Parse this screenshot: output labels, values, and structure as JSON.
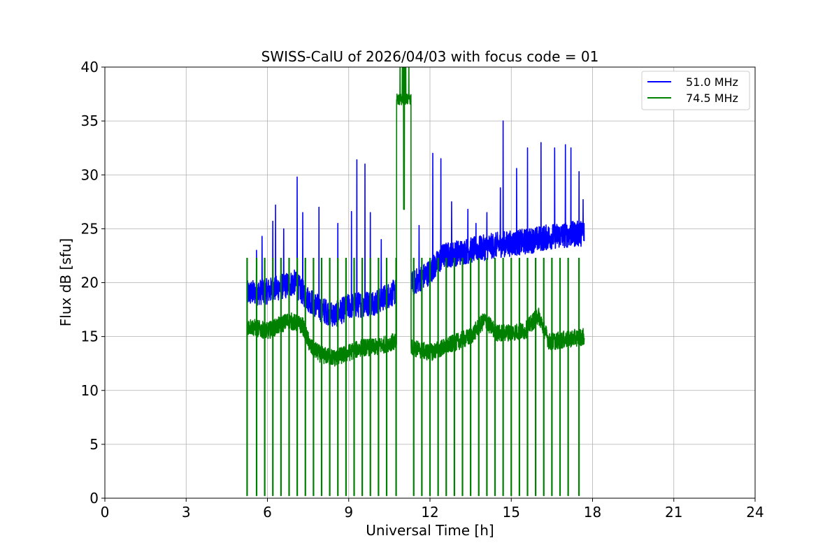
{
  "chart_data": {
    "type": "line",
    "title": "SWISS-CalU of 2026/04/03 with focus code = 01",
    "xlabel": "Universal Time [h]",
    "ylabel": "Flux dB [sfu]",
    "xlim": [
      0,
      24
    ],
    "ylim": [
      0,
      40
    ],
    "x_ticks": [
      "0",
      "3",
      "6",
      "9",
      "12",
      "15",
      "18",
      "21",
      "24"
    ],
    "y_ticks": [
      "0",
      "5",
      "10",
      "15",
      "20",
      "25",
      "30",
      "35",
      "40"
    ],
    "grid": true,
    "legend_position": "top-right",
    "series": [
      {
        "name": "51.0 MHz",
        "color": "#0000ff",
        "x_range": [
          5.25,
          17.7
        ],
        "baseline_points": [
          [
            5.25,
            19.0
          ],
          [
            6.0,
            19.2
          ],
          [
            7.0,
            20.0
          ],
          [
            7.5,
            18.5
          ],
          [
            8.0,
            17.5
          ],
          [
            8.5,
            17.0
          ],
          [
            9.0,
            17.8
          ],
          [
            9.5,
            18.0
          ],
          [
            10.0,
            18.2
          ],
          [
            10.6,
            19.0
          ],
          [
            11.3,
            19.8
          ],
          [
            12.0,
            21.0
          ],
          [
            12.5,
            22.5
          ],
          [
            13.5,
            23.0
          ],
          [
            14.5,
            23.5
          ],
          [
            15.5,
            23.8
          ],
          [
            16.5,
            24.3
          ],
          [
            17.7,
            24.6
          ]
        ],
        "noise_amplitude": 1.2,
        "spikes": [
          [
            5.6,
            23.0
          ],
          [
            5.8,
            24.3
          ],
          [
            6.2,
            25.7
          ],
          [
            6.3,
            27.2
          ],
          [
            6.6,
            25.0
          ],
          [
            7.1,
            29.8
          ],
          [
            7.3,
            26.5
          ],
          [
            7.9,
            27.0
          ],
          [
            8.6,
            25.5
          ],
          [
            9.1,
            26.6
          ],
          [
            9.3,
            31.4
          ],
          [
            9.6,
            31.0
          ],
          [
            9.8,
            26.5
          ],
          [
            10.2,
            24.0
          ],
          [
            11.6,
            25.3
          ],
          [
            12.1,
            32.0
          ],
          [
            12.4,
            31.5
          ],
          [
            12.8,
            27.5
          ],
          [
            13.4,
            26.8
          ],
          [
            13.7,
            25.5
          ],
          [
            14.1,
            26.5
          ],
          [
            14.6,
            28.8
          ],
          [
            14.7,
            35.0
          ],
          [
            15.2,
            30.6
          ],
          [
            15.6,
            32.5
          ],
          [
            16.1,
            33.0
          ],
          [
            16.6,
            32.5
          ],
          [
            17.0,
            32.8
          ],
          [
            17.2,
            32.5
          ],
          [
            17.5,
            30.3
          ],
          [
            17.65,
            27.7
          ]
        ]
      },
      {
        "name": "74.5 MHz",
        "color": "#008000",
        "x_range": [
          5.25,
          17.7
        ],
        "baseline_points": [
          [
            5.25,
            16.0
          ],
          [
            6.0,
            15.5
          ],
          [
            6.8,
            16.5
          ],
          [
            7.3,
            16.0
          ],
          [
            7.6,
            14.0
          ],
          [
            8.0,
            13.3
          ],
          [
            8.5,
            13.0
          ],
          [
            9.0,
            13.5
          ],
          [
            9.5,
            14.0
          ],
          [
            10.0,
            14.0
          ],
          [
            10.6,
            14.5
          ],
          [
            11.3,
            14.0
          ],
          [
            12.0,
            13.5
          ],
          [
            12.5,
            14.0
          ],
          [
            13.0,
            14.5
          ],
          [
            13.5,
            15.0
          ],
          [
            14.0,
            16.5
          ],
          [
            14.5,
            15.3
          ],
          [
            15.5,
            15.5
          ],
          [
            16.0,
            17.0
          ],
          [
            16.4,
            14.5
          ],
          [
            17.7,
            15.0
          ]
        ],
        "noise_amplitude": 0.8,
        "dropouts_x": [
          5.25,
          5.6,
          5.9,
          6.2,
          6.5,
          6.8,
          7.1,
          7.4,
          7.7,
          8.0,
          8.3,
          8.6,
          8.9,
          9.2,
          9.5,
          9.8,
          10.1,
          10.4,
          10.75,
          11.4,
          11.7,
          12.0,
          12.3,
          12.6,
          12.9,
          13.2,
          13.5,
          13.8,
          14.1,
          14.4,
          14.7,
          15.0,
          15.3,
          15.6,
          15.9,
          16.2,
          16.5,
          16.8,
          17.1,
          17.5
        ],
        "dropout_top": 22.3,
        "burst_x_range": [
          10.75,
          11.3
        ],
        "burst_level": 37.0
      }
    ]
  }
}
